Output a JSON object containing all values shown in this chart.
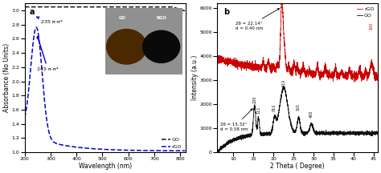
{
  "panel_a": {
    "title": "a",
    "xlabel": "Wavelength (nm)",
    "ylabel": "Absorbance (No Units)",
    "xlim": [
      200,
      820
    ],
    "ylim": [
      1.0,
      3.1
    ],
    "yticks": [
      1.0,
      1.2,
      1.4,
      1.6,
      1.8,
      2.0,
      2.2,
      2.4,
      2.6,
      2.8,
      3.0
    ],
    "xticks": [
      200,
      300,
      400,
      500,
      600,
      700,
      800
    ],
    "go_color": "#111111",
    "rgo_color": "#0000cc",
    "annotation_235": "235 π-π*",
    "annotation_245": "245 π-π*",
    "legend_go": "GO",
    "legend_rgo": "rGO",
    "inset_go_text": "GO",
    "inset_rgo_text": "RGO"
  },
  "panel_b": {
    "title": "b",
    "xlabel": "2 Theta ( Degree)",
    "ylabel": "Intensity (a.u.)",
    "xlim": [
      6,
      46
    ],
    "ylim": [
      0,
      6200
    ],
    "yticks": [
      0,
      1000,
      2000,
      3000,
      4000,
      5000,
      6000
    ],
    "xticks": [
      10,
      15,
      20,
      25,
      30,
      35,
      40,
      45
    ],
    "go_color": "#111111",
    "rgo_color": "#cc0000",
    "annotation_rgo": "2θ = 22.14°\nd = 0.40 nm",
    "annotation_go": "2θ = 15.32°\nd = 0.58 nm",
    "go_peak_x": 15.32,
    "rgo_peak_x": 22.14,
    "legend_go": "GO",
    "legend_rgo": "rGO"
  }
}
